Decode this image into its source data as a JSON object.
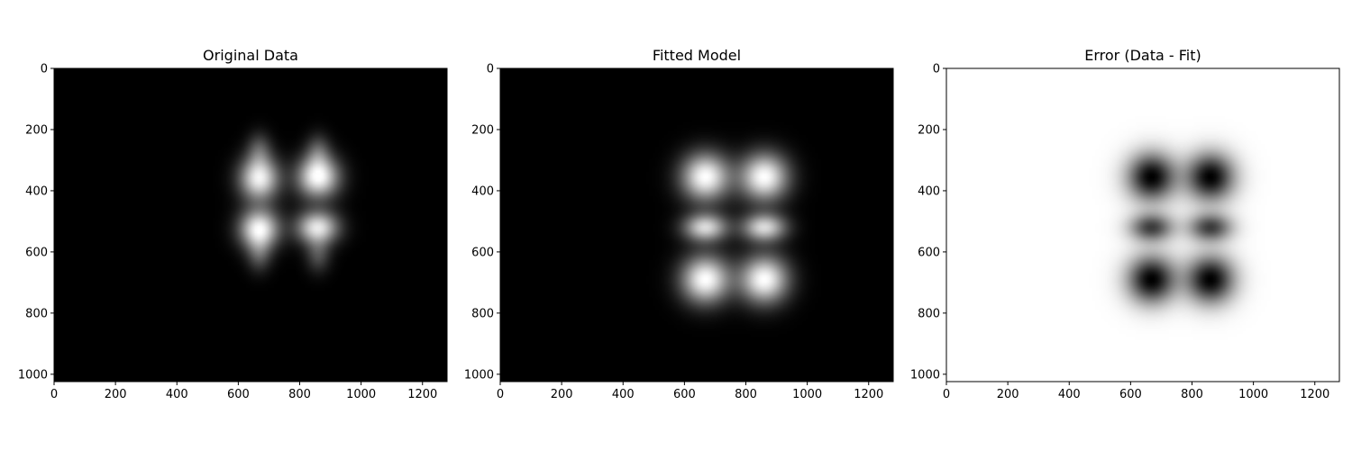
{
  "chart_data": [
    {
      "type": "heatmap",
      "title": "Original Data",
      "colormap": "gray",
      "invert": false,
      "xlim": [
        0,
        1280
      ],
      "ylim": [
        1024,
        0
      ],
      "xticks": [
        0,
        200,
        400,
        600,
        800,
        1000,
        1200
      ],
      "yticks": [
        0,
        200,
        400,
        600,
        800,
        1000
      ],
      "blobs": [
        {
          "x": 668,
          "y": 360,
          "sx": 45,
          "sy": 50,
          "amp": 0.95
        },
        {
          "x": 860,
          "y": 355,
          "sx": 48,
          "sy": 48,
          "amp": 1.0
        },
        {
          "x": 668,
          "y": 525,
          "sx": 45,
          "sy": 45,
          "amp": 0.98
        },
        {
          "x": 858,
          "y": 520,
          "sx": 48,
          "sy": 38,
          "amp": 0.9
        },
        {
          "x": 668,
          "y": 265,
          "sx": 28,
          "sy": 40,
          "amp": 0.3
        },
        {
          "x": 860,
          "y": 270,
          "sx": 28,
          "sy": 40,
          "amp": 0.3
        },
        {
          "x": 668,
          "y": 610,
          "sx": 28,
          "sy": 40,
          "amp": 0.3
        },
        {
          "x": 860,
          "y": 610,
          "sx": 28,
          "sy": 40,
          "amp": 0.3
        }
      ]
    },
    {
      "type": "heatmap",
      "title": "Fitted Model",
      "colormap": "gray",
      "invert": false,
      "xlim": [
        0,
        1280
      ],
      "ylim": [
        1024,
        0
      ],
      "xticks": [
        0,
        200,
        400,
        600,
        800,
        1000,
        1200
      ],
      "yticks": [
        0,
        200,
        400,
        600,
        800,
        1000
      ],
      "blobs": [
        {
          "x": 668,
          "y": 355,
          "sx": 55,
          "sy": 55,
          "amp": 1.0
        },
        {
          "x": 860,
          "y": 355,
          "sx": 55,
          "sy": 55,
          "amp": 1.0
        },
        {
          "x": 668,
          "y": 520,
          "sx": 50,
          "sy": 32,
          "amp": 0.85
        },
        {
          "x": 860,
          "y": 520,
          "sx": 50,
          "sy": 32,
          "amp": 0.85
        },
        {
          "x": 668,
          "y": 690,
          "sx": 55,
          "sy": 55,
          "amp": 1.0
        },
        {
          "x": 860,
          "y": 690,
          "sx": 55,
          "sy": 55,
          "amp": 1.0
        }
      ]
    },
    {
      "type": "heatmap",
      "title": "Error (Data - Fit)",
      "colormap": "gray",
      "invert": true,
      "xlim": [
        0,
        1280
      ],
      "ylim": [
        1024,
        0
      ],
      "xticks": [
        0,
        200,
        400,
        600,
        800,
        1000,
        1200
      ],
      "yticks": [
        0,
        200,
        400,
        600,
        800,
        1000
      ],
      "blobs": [
        {
          "x": 668,
          "y": 355,
          "sx": 55,
          "sy": 55,
          "amp": 1.0
        },
        {
          "x": 860,
          "y": 355,
          "sx": 55,
          "sy": 55,
          "amp": 1.0
        },
        {
          "x": 668,
          "y": 520,
          "sx": 50,
          "sy": 32,
          "amp": 0.75
        },
        {
          "x": 860,
          "y": 520,
          "sx": 50,
          "sy": 32,
          "amp": 0.75
        },
        {
          "x": 668,
          "y": 690,
          "sx": 55,
          "sy": 55,
          "amp": 1.0
        },
        {
          "x": 860,
          "y": 690,
          "sx": 55,
          "sy": 55,
          "amp": 1.0
        }
      ]
    }
  ]
}
